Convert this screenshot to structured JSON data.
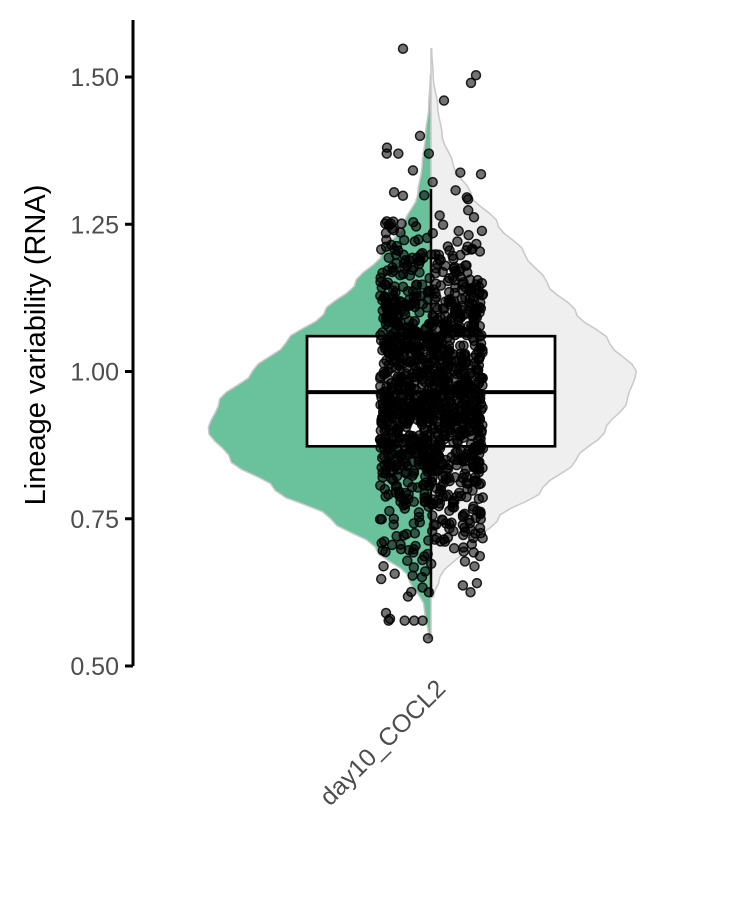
{
  "chart_data": {
    "type": "violin",
    "ylabel": "Lineage variability (RNA)",
    "xlabel": "",
    "ylim": [
      0.5,
      1.6
    ],
    "yticks": [
      0.5,
      0.75,
      1.0,
      1.25,
      1.5
    ],
    "ytick_labels": [
      "0.50",
      "0.75",
      "1.00",
      "1.25",
      "1.50"
    ],
    "categories": [
      "day10_COCL2"
    ],
    "grid": false,
    "legend": "none",
    "colors": {
      "left_half": "#69c29c",
      "right_half": "#efefef",
      "outline": "#c8c8c8",
      "points": "#000000",
      "box_fill": "#ffffff"
    },
    "left_half": {
      "range": [
        0.547,
        1.503
      ],
      "density": [
        [
          0.547,
          0.01
        ],
        [
          0.6,
          0.03
        ],
        [
          0.65,
          0.1
        ],
        [
          0.7,
          0.25
        ],
        [
          0.75,
          0.45
        ],
        [
          0.8,
          0.7
        ],
        [
          0.85,
          0.9
        ],
        [
          0.9,
          1.0
        ],
        [
          0.95,
          0.95
        ],
        [
          1.0,
          0.8
        ],
        [
          1.05,
          0.65
        ],
        [
          1.1,
          0.48
        ],
        [
          1.15,
          0.34
        ],
        [
          1.2,
          0.22
        ],
        [
          1.25,
          0.12
        ],
        [
          1.3,
          0.06
        ],
        [
          1.35,
          0.04
        ],
        [
          1.4,
          0.025
        ],
        [
          1.45,
          0.01
        ],
        [
          1.503,
          0.003
        ]
      ]
    },
    "right_half": {
      "range": [
        0.617,
        1.548
      ],
      "density": [
        [
          0.617,
          0.01
        ],
        [
          0.65,
          0.04
        ],
        [
          0.7,
          0.15
        ],
        [
          0.75,
          0.3
        ],
        [
          0.8,
          0.5
        ],
        [
          0.85,
          0.65
        ],
        [
          0.9,
          0.78
        ],
        [
          0.95,
          0.88
        ],
        [
          1.0,
          0.92
        ],
        [
          1.05,
          0.8
        ],
        [
          1.1,
          0.65
        ],
        [
          1.15,
          0.52
        ],
        [
          1.2,
          0.42
        ],
        [
          1.25,
          0.3
        ],
        [
          1.3,
          0.18
        ],
        [
          1.35,
          0.1
        ],
        [
          1.4,
          0.05
        ],
        [
          1.45,
          0.03
        ],
        [
          1.5,
          0.01
        ],
        [
          1.548,
          0.003
        ]
      ]
    },
    "boxplot": {
      "whisker_low": 0.617,
      "q1": 0.873,
      "median": 0.965,
      "q3": 1.06,
      "whisker_high": 1.31
    },
    "points": {
      "n": 1300,
      "y_range": [
        0.547,
        1.548
      ],
      "y_center": 0.965,
      "y_spread": 0.14,
      "outliers": [
        0.547,
        0.58,
        0.59,
        1.38,
        1.4,
        1.46,
        1.49,
        1.503,
        1.548
      ]
    }
  }
}
